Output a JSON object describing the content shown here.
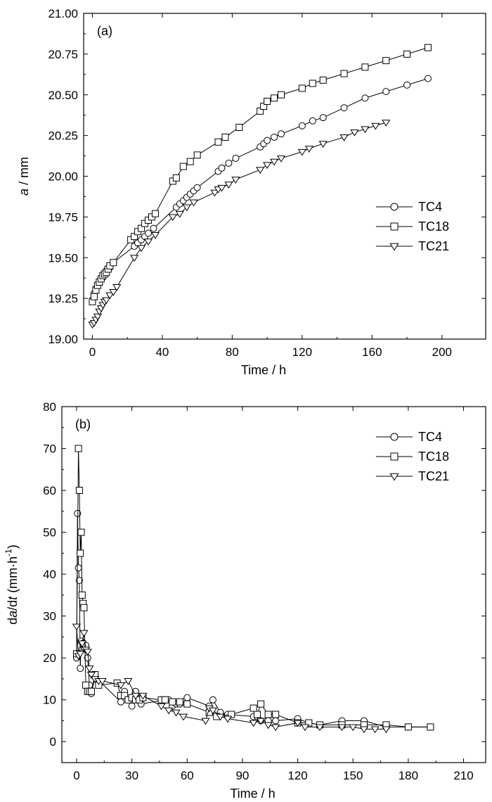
{
  "chart_data": [
    {
      "type": "line",
      "panel_label": "(a)",
      "xlabel": "Time / h",
      "ylabel_italic": "a",
      "ylabel_rest": " / mm",
      "xlim": [
        -5,
        225
      ],
      "ylim": [
        19.0,
        21.0
      ],
      "xticks": [
        0,
        40,
        80,
        120,
        160,
        200
      ],
      "yticks": [
        19.0,
        19.25,
        19.5,
        19.75,
        20.0,
        20.25,
        20.5,
        20.75,
        21.0
      ],
      "ytick_labels": [
        "19.00",
        "19.25",
        "19.50",
        "19.75",
        "20.00",
        "20.25",
        "20.50",
        "20.75",
        "21.00"
      ],
      "legend_position": "center-right",
      "series": [
        {
          "name": "TC4",
          "marker": "circle",
          "x": [
            0,
            1,
            2,
            3,
            4,
            5,
            6,
            7,
            8,
            10,
            12,
            24,
            26,
            28,
            30,
            32,
            35,
            48,
            50,
            52,
            54,
            56,
            58,
            60,
            72,
            74,
            78,
            82,
            96,
            98,
            100,
            104,
            108,
            120,
            126,
            132,
            144,
            156,
            168,
            180,
            192
          ],
          "y": [
            19.24,
            19.28,
            19.31,
            19.33,
            19.35,
            19.37,
            19.38,
            19.4,
            19.42,
            19.44,
            19.47,
            19.57,
            19.59,
            19.61,
            19.63,
            19.65,
            19.68,
            19.81,
            19.83,
            19.85,
            19.87,
            19.89,
            19.91,
            19.93,
            20.03,
            20.05,
            20.08,
            20.11,
            20.18,
            20.2,
            20.22,
            20.24,
            20.26,
            20.31,
            20.34,
            20.36,
            20.42,
            20.48,
            20.52,
            20.56,
            20.6
          ]
        },
        {
          "name": "TC18",
          "marker": "square",
          "x": [
            0,
            1,
            2,
            3,
            4,
            5,
            6,
            7,
            8,
            9,
            10,
            12,
            22,
            24,
            26,
            28,
            30,
            32,
            34,
            36,
            46,
            48,
            52,
            56,
            60,
            72,
            76,
            84,
            96,
            98,
            100,
            104,
            108,
            120,
            126,
            132,
            144,
            156,
            168,
            180,
            192
          ],
          "y": [
            19.23,
            19.26,
            19.3,
            19.33,
            19.35,
            19.37,
            19.39,
            19.4,
            19.41,
            19.43,
            19.45,
            19.47,
            19.61,
            19.63,
            19.66,
            19.68,
            19.71,
            19.73,
            19.75,
            19.77,
            19.97,
            19.99,
            20.06,
            20.09,
            20.13,
            20.21,
            20.24,
            20.3,
            20.4,
            20.43,
            20.46,
            20.48,
            20.5,
            20.54,
            20.57,
            20.59,
            20.63,
            20.67,
            20.71,
            20.75,
            20.79
          ]
        },
        {
          "name": "TC21",
          "marker": "triangle-down",
          "x": [
            0,
            1,
            2,
            3,
            4,
            5,
            6,
            7,
            8,
            10,
            12,
            14,
            24,
            28,
            32,
            36,
            46,
            50,
            54,
            58,
            70,
            72,
            74,
            78,
            82,
            96,
            100,
            104,
            108,
            120,
            124,
            132,
            144,
            150,
            156,
            162,
            168
          ],
          "y": [
            19.09,
            19.1,
            19.12,
            19.14,
            19.17,
            19.19,
            19.21,
            19.23,
            19.24,
            19.27,
            19.29,
            19.32,
            19.5,
            19.56,
            19.6,
            19.64,
            19.75,
            19.77,
            19.81,
            19.84,
            19.9,
            19.92,
            19.93,
            19.95,
            19.98,
            20.04,
            20.07,
            20.09,
            20.11,
            20.15,
            20.17,
            20.2,
            20.24,
            20.27,
            20.29,
            20.31,
            20.33
          ]
        }
      ]
    },
    {
      "type": "line",
      "panel_label": "(b)",
      "xlabel": "Time / h",
      "ylabel_parts": [
        "d",
        "a",
        "/d",
        "t",
        " (mm·h",
        "-1",
        ")"
      ],
      "xlim": [
        -8,
        222
      ],
      "ylim": [
        -5,
        80
      ],
      "xticks": [
        0,
        30,
        60,
        90,
        120,
        150,
        180,
        210
      ],
      "yticks": [
        0,
        10,
        20,
        30,
        40,
        50,
        60,
        70,
        80
      ],
      "legend_position": "top-right",
      "series": [
        {
          "name": "TC4",
          "marker": "circle",
          "x": [
            0,
            0.5,
            1,
            1.5,
            2,
            2.5,
            3,
            3.5,
            4,
            5,
            6,
            7,
            8,
            10,
            24,
            26,
            28,
            30,
            32,
            35,
            48,
            50,
            52,
            54,
            56,
            58,
            60,
            72,
            74,
            78,
            82,
            96,
            98,
            100,
            104,
            108,
            120,
            126,
            132,
            144,
            156,
            168,
            180,
            192
          ],
          "y": [
            20,
            54.5,
            41.5,
            38.5,
            17.5,
            24,
            22,
            23.5,
            22.5,
            23,
            20,
            13.5,
            11.5,
            15.5,
            9.5,
            12,
            10,
            8.5,
            12,
            9,
            10,
            10,
            8.5,
            9,
            9,
            9.5,
            10.5,
            8.5,
            10,
            7,
            6.5,
            6,
            6,
            5,
            5,
            5,
            5.5,
            4.5,
            4,
            5,
            5,
            3.5,
            3.5,
            3.5
          ]
        },
        {
          "name": "TC18",
          "marker": "square",
          "x": [
            0,
            1,
            1.5,
            2,
            2.5,
            3,
            3.5,
            4,
            5,
            6,
            7,
            8,
            10,
            12,
            22,
            24,
            26,
            28,
            30,
            32,
            34,
            36,
            46,
            48,
            52,
            56,
            60,
            72,
            76,
            84,
            96,
            98,
            100,
            104,
            108,
            120,
            126,
            132,
            144,
            156,
            168,
            180,
            192
          ],
          "y": [
            21,
            70,
            60,
            45,
            50,
            35,
            33,
            32,
            13.5,
            12,
            12,
            12,
            16,
            13.5,
            14,
            11,
            11,
            10,
            10.5,
            10,
            10,
            10.5,
            10,
            10,
            9.5,
            9.5,
            9,
            7,
            6,
            6.5,
            8,
            6.5,
            9,
            6.5,
            6.5,
            4.5,
            4.5,
            4,
            4,
            4,
            4,
            3.5,
            3.5
          ]
        },
        {
          "name": "TC21",
          "marker": "triangle-down",
          "x": [
            0,
            1,
            2,
            3,
            4,
            5,
            6,
            7,
            8,
            10,
            12,
            14,
            24,
            28,
            32,
            36,
            46,
            50,
            54,
            58,
            70,
            72,
            74,
            78,
            82,
            96,
            100,
            104,
            108,
            120,
            124,
            132,
            144,
            150,
            156,
            162,
            168
          ],
          "y": [
            27.5,
            20.5,
            21,
            23.5,
            26,
            22,
            21.5,
            17.5,
            16,
            15,
            14.5,
            14.5,
            13.5,
            14.5,
            11,
            11,
            8.5,
            7.5,
            7,
            6,
            5,
            8,
            7.5,
            6,
            5.5,
            4.5,
            5,
            4,
            3.5,
            4.5,
            3.5,
            3.5,
            3.5,
            3.5,
            3,
            3,
            3
          ]
        }
      ]
    }
  ]
}
